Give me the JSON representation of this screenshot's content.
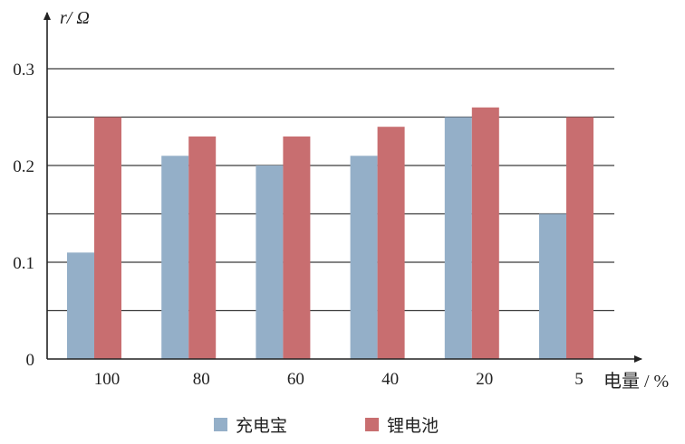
{
  "chart_data": {
    "type": "bar",
    "categories": [
      "100",
      "80",
      "60",
      "40",
      "20",
      "5"
    ],
    "series": [
      {
        "name": "充电宝",
        "values": [
          0.11,
          0.21,
          0.2,
          0.21,
          0.25,
          0.15
        ],
        "color": "#94afc8"
      },
      {
        "name": "锂电池",
        "values": [
          0.25,
          0.23,
          0.23,
          0.24,
          0.26,
          0.25
        ],
        "color": "#c86e70"
      }
    ],
    "ylabel": "r/ Ω",
    "xlabel": "电量 / %",
    "ylim": [
      0,
      0.3
    ],
    "yticks": [
      "0",
      "0.1",
      "0.2",
      "0.3"
    ],
    "grid": true,
    "legend_position": "bottom-center"
  }
}
